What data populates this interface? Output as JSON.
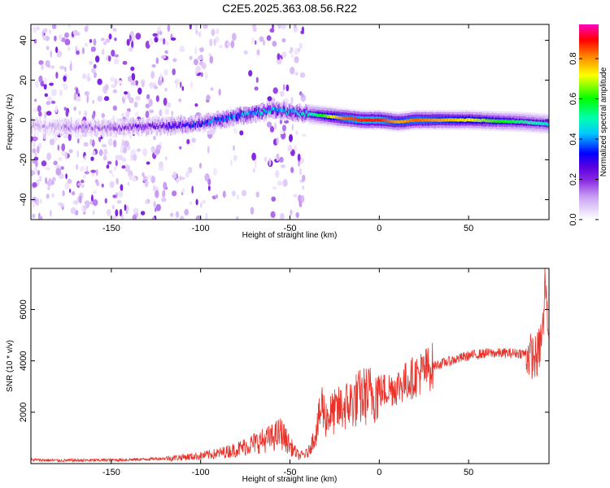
{
  "title": "C2E5.2025.363.08.56.R22",
  "colors": {
    "snr_line": "#e8322a",
    "axis": "#000000",
    "spectrogram_scale": [
      "#ffffff",
      "#e8d8fb",
      "#c79cf3",
      "#8a2be2",
      "#5a00e0",
      "#0000ff",
      "#00c8ff",
      "#00ffb0",
      "#00ff00",
      "#ffff00",
      "#ff8000",
      "#ff0000",
      "#ff00c0"
    ]
  },
  "chart_data": [
    {
      "type": "heatmap",
      "name": "spectrogram",
      "xlabel": "Height of straight line (km)",
      "ylabel": "Frequency (Hz)",
      "xlim": [
        -195,
        95
      ],
      "ylim": [
        -50,
        48
      ],
      "xticks": [
        -150,
        -100,
        -50,
        0,
        50
      ],
      "yticks": [
        -40,
        -20,
        0,
        20,
        40
      ],
      "grid": false,
      "colorbar": {
        "label": "Normalized spectral amplitude",
        "range": [
          0.0,
          0.97
        ],
        "ticks": [
          0.0,
          0.2,
          0.4,
          0.6,
          0.8
        ]
      },
      "ridge": {
        "x": [
          -195,
          -150,
          -120,
          -100,
          -80,
          -60,
          -50,
          -40,
          -30,
          -20,
          -10,
          0,
          10,
          20,
          50,
          80,
          95
        ],
        "frequency": [
          -3,
          -4,
          -3,
          -2,
          2,
          5,
          4,
          3,
          2,
          1,
          0,
          0,
          -1,
          0,
          0,
          -1,
          -2
        ],
        "peak_amplitude": [
          0.1,
          0.2,
          0.3,
          0.4,
          0.45,
          0.5,
          0.45,
          0.55,
          0.7,
          0.85,
          0.9,
          0.9,
          0.8,
          0.85,
          0.75,
          0.6,
          0.55
        ]
      }
    },
    {
      "type": "line",
      "name": "snr",
      "xlabel": "Height of straight line (km)",
      "ylabel": "SNR (10 * v/v)",
      "xlim": [
        -195,
        95
      ],
      "ylim": [
        0,
        7600
      ],
      "xticks": [
        -150,
        -100,
        -50,
        0,
        50
      ],
      "yticks": [
        2000,
        4000,
        6000
      ],
      "grid": false,
      "series": [
        {
          "color": "#e8322a",
          "x": [
            -195,
            -180,
            -160,
            -140,
            -120,
            -110,
            -100,
            -90,
            -80,
            -70,
            -60,
            -55,
            -50,
            -45,
            -40,
            -35,
            -32,
            -30,
            -25,
            -20,
            -15,
            -10,
            -5,
            0,
            5,
            10,
            20,
            30,
            40,
            50,
            60,
            70,
            80,
            85,
            88,
            90,
            92,
            95
          ],
          "y": [
            150,
            120,
            130,
            150,
            200,
            250,
            300,
            400,
            550,
            800,
            1000,
            1200,
            700,
            300,
            400,
            1300,
            2300,
            1800,
            2000,
            2200,
            2400,
            2600,
            2700,
            2800,
            2900,
            3000,
            3400,
            3800,
            4000,
            4200,
            4300,
            4300,
            4300,
            4200,
            4100,
            4600,
            5500,
            4500
          ]
        }
      ]
    }
  ]
}
